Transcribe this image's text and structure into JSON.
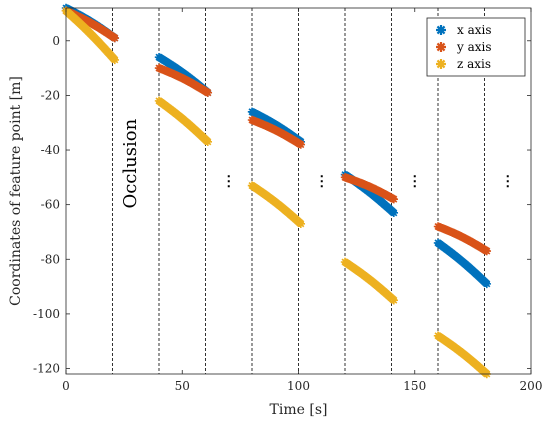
{
  "chart_data": {
    "type": "scatter",
    "xlabel": "Time [s]",
    "ylabel": "Coordinates of feature point [m]",
    "xlim": [
      0,
      200
    ],
    "ylim": [
      -122,
      12
    ],
    "xticks": [
      0,
      50,
      100,
      150,
      200
    ],
    "yticks": [
      -120,
      -100,
      -80,
      -60,
      -40,
      -20,
      0
    ],
    "grid": false,
    "legend_position": "top-right",
    "occlusion_boundaries": [
      20,
      40,
      60,
      80,
      100,
      120,
      140,
      160,
      180
    ],
    "annotation": "Occlusion",
    "continuation_marker": "⋮",
    "continuation_x": [
      70,
      110,
      150,
      190
    ],
    "continuation_y": -53,
    "series": [
      {
        "name": "x axis",
        "color": "#0072BD",
        "segments": [
          {
            "x0": 0,
            "y0": 12,
            "x1": 21,
            "y1": 1
          },
          {
            "x0": 40,
            "y0": -6,
            "x1": 61,
            "y1": -19
          },
          {
            "x0": 80,
            "y0": -26,
            "x1": 101,
            "y1": -37
          },
          {
            "x0": 120,
            "y0": -49,
            "x1": 141,
            "y1": -63
          },
          {
            "x0": 160,
            "y0": -74,
            "x1": 181,
            "y1": -89
          }
        ]
      },
      {
        "name": "y axis",
        "color": "#D95319",
        "segments": [
          {
            "x0": 0,
            "y0": 11,
            "x1": 21,
            "y1": 1
          },
          {
            "x0": 40,
            "y0": -10,
            "x1": 61,
            "y1": -19
          },
          {
            "x0": 80,
            "y0": -29,
            "x1": 101,
            "y1": -38
          },
          {
            "x0": 120,
            "y0": -50,
            "x1": 141,
            "y1": -58
          },
          {
            "x0": 160,
            "y0": -68,
            "x1": 181,
            "y1": -77
          }
        ]
      },
      {
        "name": "z axis",
        "color": "#EDB120",
        "segments": [
          {
            "x0": 0,
            "y0": 11,
            "x1": 21,
            "y1": -7
          },
          {
            "x0": 40,
            "y0": -22,
            "x1": 61,
            "y1": -37
          },
          {
            "x0": 80,
            "y0": -53,
            "x1": 101,
            "y1": -67
          },
          {
            "x0": 120,
            "y0": -81,
            "x1": 141,
            "y1": -95
          },
          {
            "x0": 160,
            "y0": -108,
            "x1": 181,
            "y1": -122
          }
        ]
      }
    ]
  }
}
